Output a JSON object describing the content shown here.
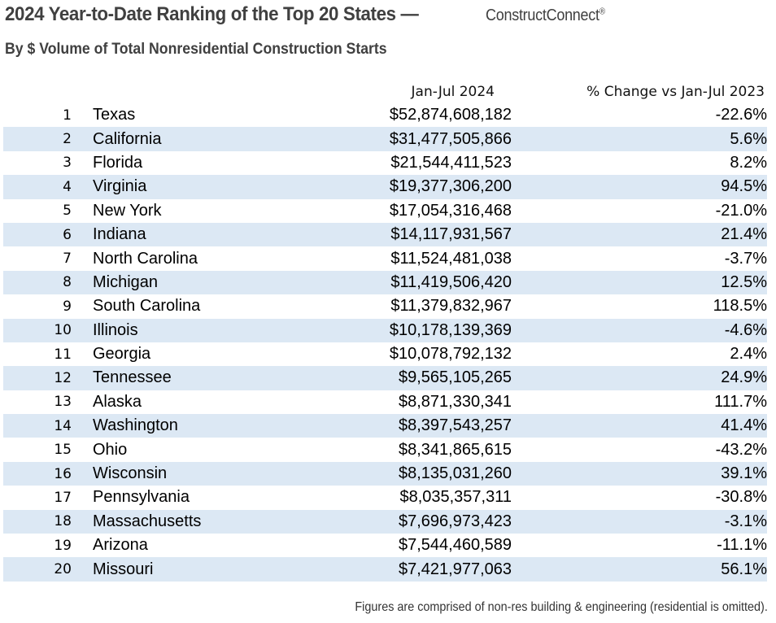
{
  "chart_data": {
    "type": "table",
    "title": "2024 Year-to-Date Ranking of the Top 20 States —",
    "brand": "ConstructConnect",
    "brand_mark": "®",
    "subtitle": "By $ Volume of Total Nonresidential Construction Starts",
    "columns": [
      "Jan-Jul 2024",
      "% Change vs Jan-Jul 2023"
    ],
    "rows": [
      {
        "rank": "1",
        "state": "Texas",
        "value": "$52,874,608,182",
        "change": "-22.6%"
      },
      {
        "rank": "2",
        "state": "California",
        "value": "$31,477,505,866",
        "change": "5.6%"
      },
      {
        "rank": "3",
        "state": "Florida",
        "value": "$21,544,411,523",
        "change": "8.2%"
      },
      {
        "rank": "4",
        "state": "Virginia",
        "value": "$19,377,306,200",
        "change": "94.5%"
      },
      {
        "rank": "5",
        "state": "New York",
        "value": "$17,054,316,468",
        "change": "-21.0%"
      },
      {
        "rank": "6",
        "state": "Indiana",
        "value": "$14,117,931,567",
        "change": "21.4%"
      },
      {
        "rank": "7",
        "state": "North Carolina",
        "value": "$11,524,481,038",
        "change": "-3.7%"
      },
      {
        "rank": "8",
        "state": "Michigan",
        "value": "$11,419,506,420",
        "change": "12.5%"
      },
      {
        "rank": "9",
        "state": "South Carolina",
        "value": "$11,379,832,967",
        "change": "118.5%"
      },
      {
        "rank": "10",
        "state": "Illinois",
        "value": "$10,178,139,369",
        "change": "-4.6%"
      },
      {
        "rank": "11",
        "state": "Georgia",
        "value": "$10,078,792,132",
        "change": "2.4%"
      },
      {
        "rank": "12",
        "state": "Tennessee",
        "value": "$9,565,105,265",
        "change": "24.9%"
      },
      {
        "rank": "13",
        "state": "Alaska",
        "value": "$8,871,330,341",
        "change": "111.7%"
      },
      {
        "rank": "14",
        "state": "Washington",
        "value": "$8,397,543,257",
        "change": "41.4%"
      },
      {
        "rank": "15",
        "state": "Ohio",
        "value": "$8,341,865,615",
        "change": "-43.2%"
      },
      {
        "rank": "16",
        "state": "Wisconsin",
        "value": "$8,135,031,260",
        "change": "39.1%"
      },
      {
        "rank": "17",
        "state": "Pennsylvania",
        "value": "$8,035,357,311",
        "change": "-30.8%"
      },
      {
        "rank": "18",
        "state": "Massachusetts",
        "value": "$7,696,973,423",
        "change": "-3.1%"
      },
      {
        "rank": "19",
        "state": "Arizona",
        "value": "$7,544,460,589",
        "change": "-11.1%"
      },
      {
        "rank": "20",
        "state": "Missouri",
        "value": "$7,421,977,063",
        "change": "56.1%"
      }
    ],
    "footnote": "Figures are comprised of non-res building & engineering (residential is omitted).",
    "colors": {
      "title": "#404040",
      "band": "#dce8f4"
    }
  }
}
